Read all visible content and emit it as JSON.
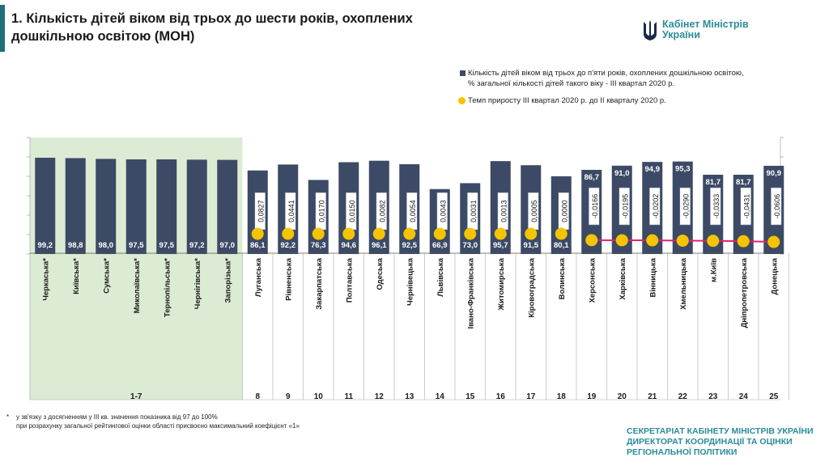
{
  "title": "1. Кількість дітей віком від трьох до шести років, охоплених дошкільною освітою (МОН)",
  "logo": {
    "line1": "Кабінет Міністрів",
    "line2": "України"
  },
  "legend": {
    "bar_label_line1": "Кількість дітей віком від трьох до п'яти років, охоплених дошкільною освітою,",
    "bar_label_line2": "% загальної кількості дітей такого віку - ІІІ квартал 2020 р.",
    "dot_label": "Темп приросту ІІІ квартал 2020 р. до ІІ кварталу 2020 р."
  },
  "footnote": {
    "asterisk": "*",
    "line1": "у зв'язку з досягненням у ІІІ  кв. значення показника від 97 до 100%",
    "line2": "при розрахунку загальної рейтингової оцінки області присвоєно максимальний коефіцієнт «1»"
  },
  "secretariat": {
    "line1": "СЕКРЕТАРІАТ КАБІНЕТУ МІНІСТРІВ УКРАЇНИ",
    "line2": "ДИРЕКТОРАТ КООРДИНАЦІЇ ТА ОЦІНКИ",
    "line3": "РЕГІОНАЛЬНОЇ ПОЛІТИКИ"
  },
  "colors": {
    "bar": "#3c4a66",
    "dot": "#f5c400",
    "line": "#e0206e",
    "highlight": "#dcebd3",
    "accent": "#1f6f7a",
    "brand": "#2a8c99"
  },
  "chart_data": {
    "type": "bar",
    "categories": [
      "Черкаська*",
      "Київська*",
      "Сумська*",
      "Миколаївська*",
      "Тернопільська*",
      "Чернігівська*",
      "Запорізька*",
      "Луганська",
      "Рівненська",
      "Закарпатська",
      "Полтавська",
      "Одеська",
      "Чернівецька",
      "Львівська",
      "Івано-Франківська",
      "Житомирська",
      "Кіровоградська",
      "Волинська",
      "Херсонська",
      "Харківська",
      "Вінницька",
      "Хмельницька",
      "м.Київ",
      "Дніпропетровська",
      "Донецька"
    ],
    "values": [
      99.2,
      98.8,
      98.0,
      97.5,
      97.5,
      97.2,
      97.0,
      86.1,
      92.2,
      76.3,
      94.6,
      96.1,
      92.5,
      66.9,
      73.0,
      95.7,
      91.5,
      80.1,
      86.7,
      91.0,
      94.9,
      95.3,
      81.7,
      81.7,
      90.9
    ],
    "value_labels": [
      "99,2",
      "98,8",
      "98,0",
      "97,5",
      "97,5",
      "97,2",
      "97,0",
      "86,1",
      "92,2",
      "76,3",
      "94,6",
      "96,1",
      "92,5",
      "66,9",
      "73,0",
      "95,7",
      "91,5",
      "80,1",
      "86,7",
      "91,0",
      "94,9",
      "95,3",
      "81,7",
      "81,7",
      "90,9"
    ],
    "growth": [
      null,
      null,
      null,
      null,
      null,
      null,
      null,
      0.0827,
      0.0441,
      0.017,
      0.015,
      0.0082,
      0.0054,
      0.0043,
      0.0031,
      0.0013,
      0.0005,
      0.0,
      -0.0166,
      -0.0195,
      -0.0202,
      -0.029,
      -0.0333,
      -0.0431,
      -0.0606
    ],
    "growth_labels": [
      "",
      "",
      "",
      "",
      "",
      "",
      "",
      "0,0827",
      "0,0441",
      "0,0170",
      "0,0150",
      "0,0082",
      "0,0054",
      "0,0043",
      "0,0031",
      "0,0013",
      "0,0005",
      "0,0000",
      "-0,0166",
      "-0,0195",
      "-0,0202",
      "-0,0290",
      "-0,0333",
      "-0,0431",
      "-0,0606"
    ],
    "ranks": [
      "1-7",
      "8",
      "9",
      "10",
      "11",
      "12",
      "13",
      "14",
      "15",
      "16",
      "17",
      "18",
      "19",
      "20",
      "21",
      "22",
      "23",
      "24",
      "25"
    ],
    "highlight_group": "1-7",
    "ylim": [
      0,
      120
    ]
  }
}
